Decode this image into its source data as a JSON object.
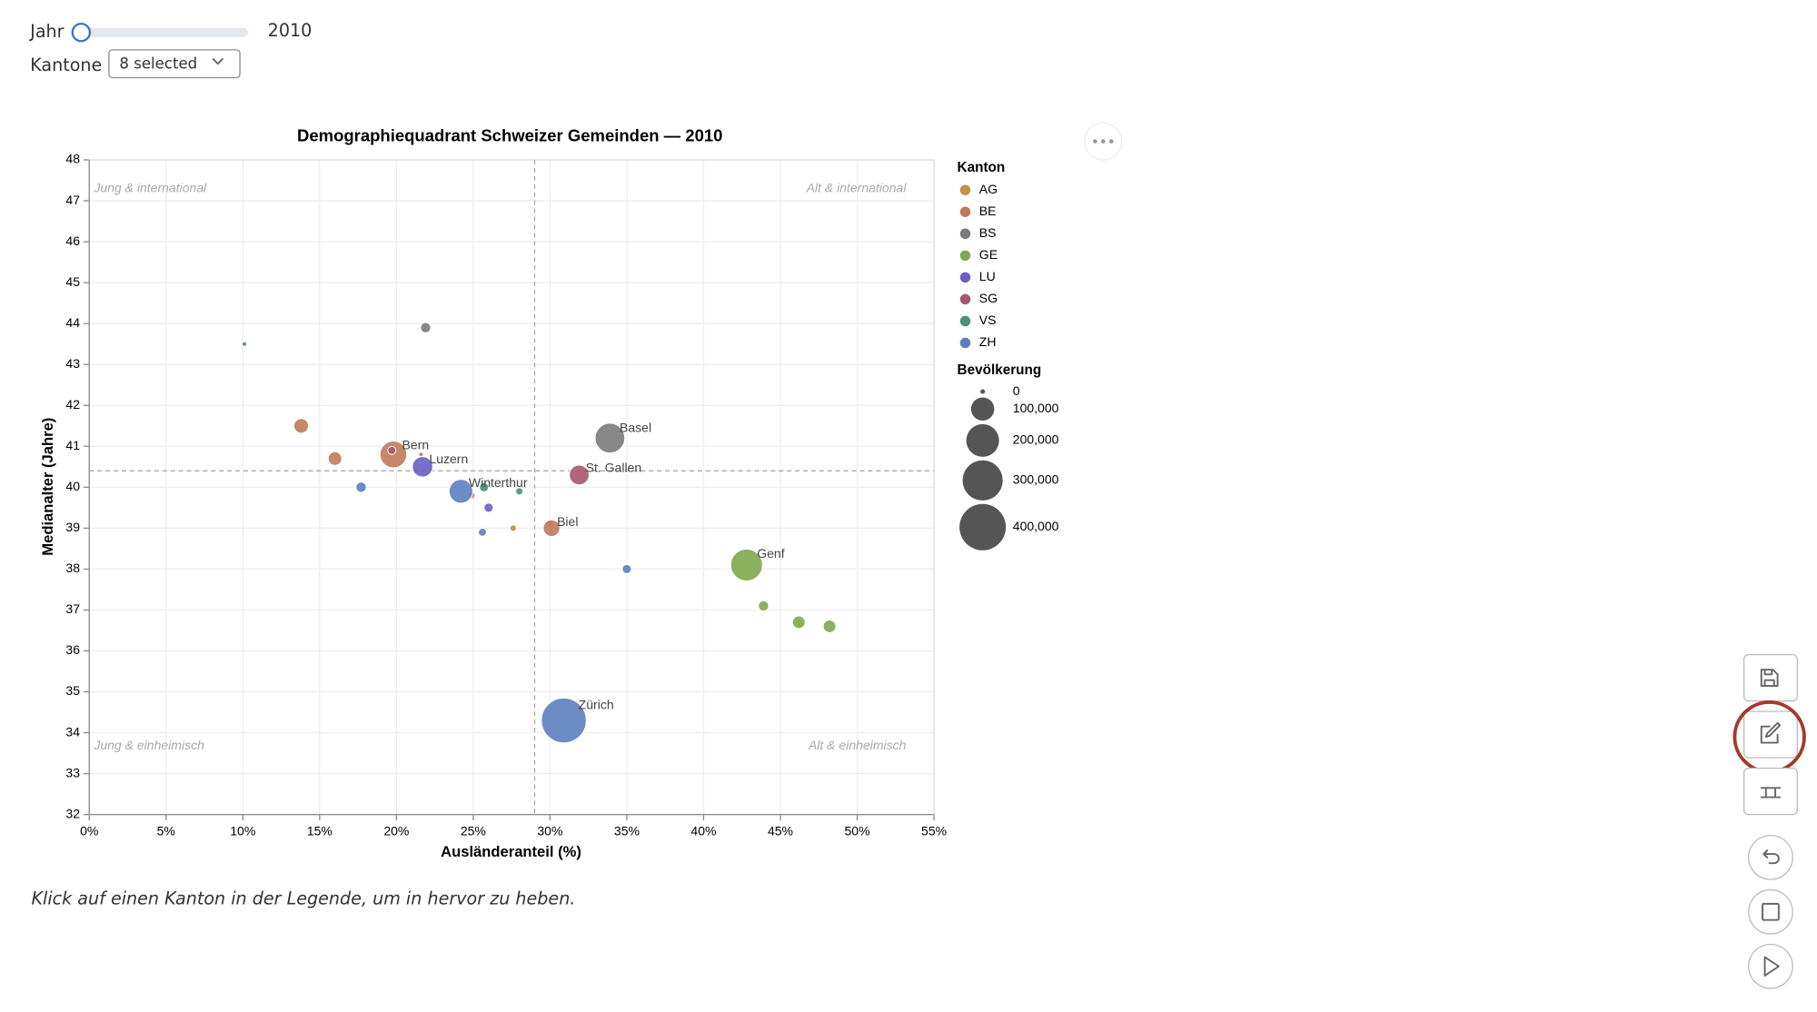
{
  "controls": {
    "year_label": "Jahr",
    "year_value": 2010,
    "cantons_label": "Kantone",
    "cantons_value": "8 selected"
  },
  "chart_data": {
    "type": "scatter",
    "title": "Demographiequadrant Schweizer Gemeinden — 2010",
    "x_label": "Ausländeranteil (%)",
    "y_label": "Medianalter (Jahre)",
    "xlim": [
      0,
      55
    ],
    "ylim": [
      32,
      48
    ],
    "xticks": [
      {
        "value": 0,
        "label": "0%"
      },
      {
        "value": 5,
        "label": "5%"
      },
      {
        "value": 10,
        "label": "10%"
      },
      {
        "value": 15,
        "label": "15%"
      },
      {
        "value": 20,
        "label": "20%"
      },
      {
        "value": 25,
        "label": "25%"
      },
      {
        "value": 30,
        "label": "30%"
      },
      {
        "value": 35,
        "label": "35%"
      },
      {
        "value": 40,
        "label": "40%"
      },
      {
        "value": 45,
        "label": "45%"
      },
      {
        "value": 50,
        "label": "50%"
      },
      {
        "value": 55,
        "label": "55%"
      }
    ],
    "yticks": [
      32,
      33,
      34,
      35,
      36,
      37,
      38,
      39,
      40,
      41,
      42,
      43,
      44,
      45,
      46,
      47,
      48
    ],
    "grid": true,
    "reference_lines": {
      "x": 29,
      "y": 40.4
    },
    "annotations": [
      "Jung & international",
      "Alt & international",
      "Jung & einheimisch",
      "Alt & einheimisch"
    ],
    "legend": {
      "title": "Kanton",
      "position": "right"
    },
    "size_legend": {
      "title": "Bevölkerung",
      "values": [
        0,
        {
          "value": 100000,
          "label": "100,000"
        },
        {
          "value": 200000,
          "label": "200,000"
        },
        {
          "value": 300000,
          "label": "300,000"
        },
        {
          "value": 400000,
          "label": "400,000"
        }
      ]
    },
    "series": [
      {
        "name": "AG",
        "color": "#c0904d",
        "x": [
          24.9,
          27.6,
          30.0
        ],
        "values": [
          39.8,
          39.0,
          39.1
        ],
        "size": [
          9000,
          8000,
          10000
        ],
        "labels": [
          null,
          null,
          null
        ]
      },
      {
        "name": "BE",
        "color": "#c07a5a",
        "x": [
          13.8,
          16.0,
          19.8,
          21.6,
          30.1
        ],
        "values": [
          41.5,
          40.7,
          40.8,
          40.8,
          39.0
        ],
        "size": [
          40000,
          35000,
          134000,
          3000,
          52000
        ],
        "labels": [
          null,
          null,
          "Bern",
          null,
          "Biel"
        ]
      },
      {
        "name": "BS",
        "color": "#7a7a7a",
        "x": [
          21.9,
          33.9
        ],
        "values": [
          43.9,
          41.2
        ],
        "size": [
          20000,
          165000
        ],
        "labels": [
          null,
          "Basel"
        ]
      },
      {
        "name": "GE",
        "color": "#7fa84c",
        "x": [
          42.8,
          43.9,
          46.2,
          48.2
        ],
        "values": [
          38.1,
          37.1,
          36.7,
          36.6
        ],
        "size": [
          190000,
          20000,
          30000,
          30000
        ],
        "labels": [
          "Genf",
          null,
          null,
          null
        ]
      },
      {
        "name": "LU",
        "color": "#6a5fc4",
        "x": [
          21.7,
          26.0
        ],
        "values": [
          40.5,
          39.5
        ],
        "size": [
          78000,
          16000
        ],
        "labels": [
          "Luzern",
          null
        ]
      },
      {
        "name": "SG",
        "color": "#a8566d",
        "x": [
          19.7,
          31.9
        ],
        "values": [
          40.9,
          40.3
        ],
        "size": [
          12000,
          73000
        ],
        "labels": [
          null,
          "St. Gallen"
        ]
      },
      {
        "name": "VS",
        "color": "#4e8f78",
        "x": [
          10.1,
          25.7,
          28.0
        ],
        "values": [
          43.5,
          40.0,
          39.9
        ],
        "size": [
          4000,
          16000,
          10000
        ],
        "labels": [
          null,
          null,
          null
        ]
      },
      {
        "name": "ZH",
        "color": "#5b7fbf",
        "x": [
          17.7,
          24.2,
          25.6,
          35.0,
          30.9
        ],
        "values": [
          40.0,
          39.9,
          38.9,
          38.0,
          34.3
        ],
        "size": [
          20000,
          105000,
          12000,
          16000,
          375000
        ],
        "labels": [
          null,
          "Winterthur",
          null,
          null,
          "Zürich"
        ]
      }
    ]
  },
  "note": "Klick auf einen Kanton in der Legende, um in hervor zu heben."
}
